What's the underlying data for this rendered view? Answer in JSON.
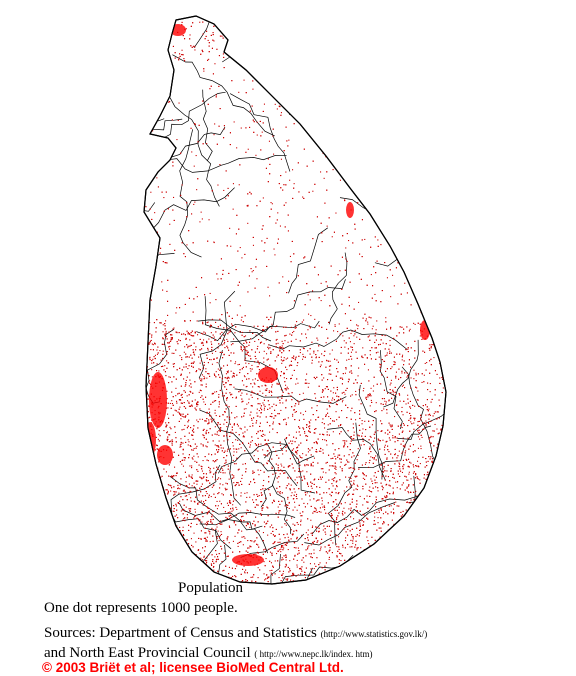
{
  "map": {
    "title": "Population",
    "dot_note": "One dot represents 1000 people.",
    "sources_label": "Sources: Department of Census and Statistics",
    "sources_url_1": "(http://www.statistics.gov.lk/)",
    "sources_line_2": "and North East Provincial Council",
    "sources_url_2": "( http://www.nepc.lk/index. htm)",
    "copyright": "© 2003 Briët et al; licensee BioMed Central Ltd.",
    "dot_color": "#cc0000",
    "dense_color": "#ff0000",
    "border_color": "#000000"
  }
}
